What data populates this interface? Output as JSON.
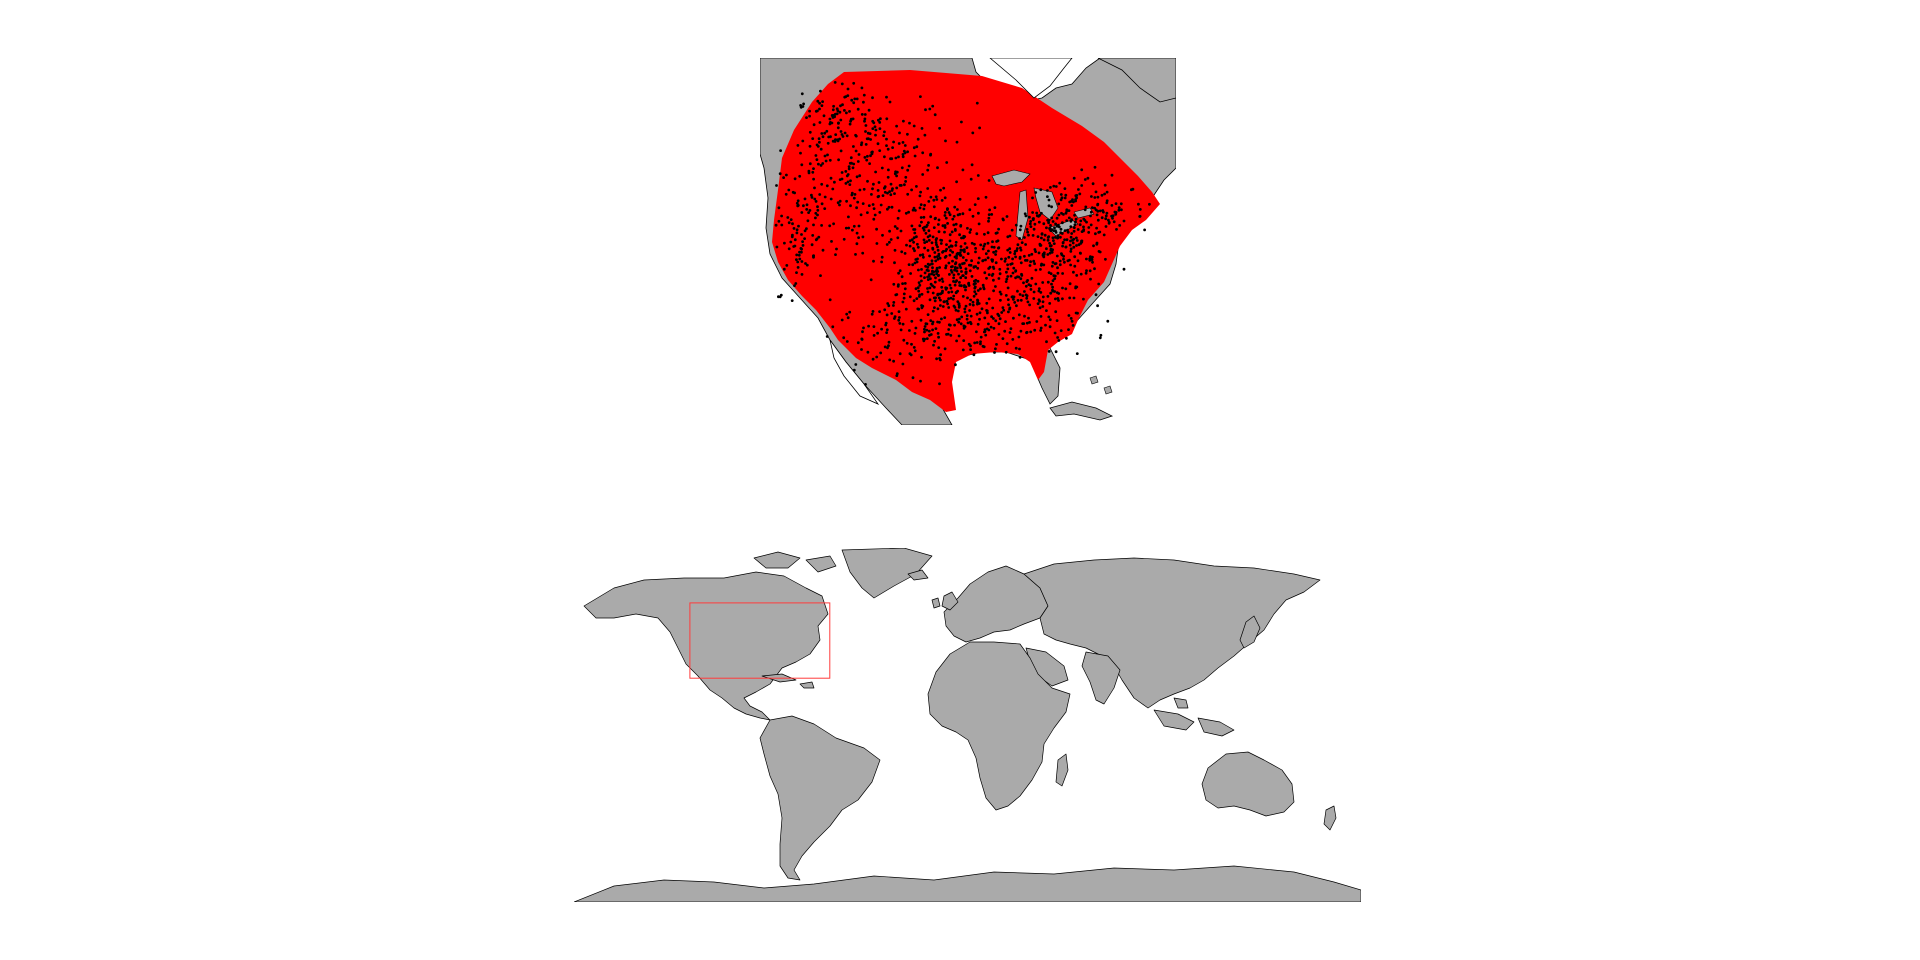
{
  "maps": {
    "regional": {
      "land_color": "#aaaaaa",
      "water_color": "#ffffff",
      "border_color": "#000000",
      "range_color": "#ff0000",
      "point_color": "#000000",
      "extent": {
        "lon": [
          -127,
          -63
        ],
        "lat": [
          20,
          57
        ]
      }
    },
    "world": {
      "land_color": "#aaaaaa",
      "water_color": "#ffffff",
      "border_color": "#000000",
      "extent_box_color": "#ff3b3b",
      "extent_box": {
        "lon": [
          -127,
          -63
        ],
        "lat": [
          20,
          57
        ]
      }
    }
  }
}
